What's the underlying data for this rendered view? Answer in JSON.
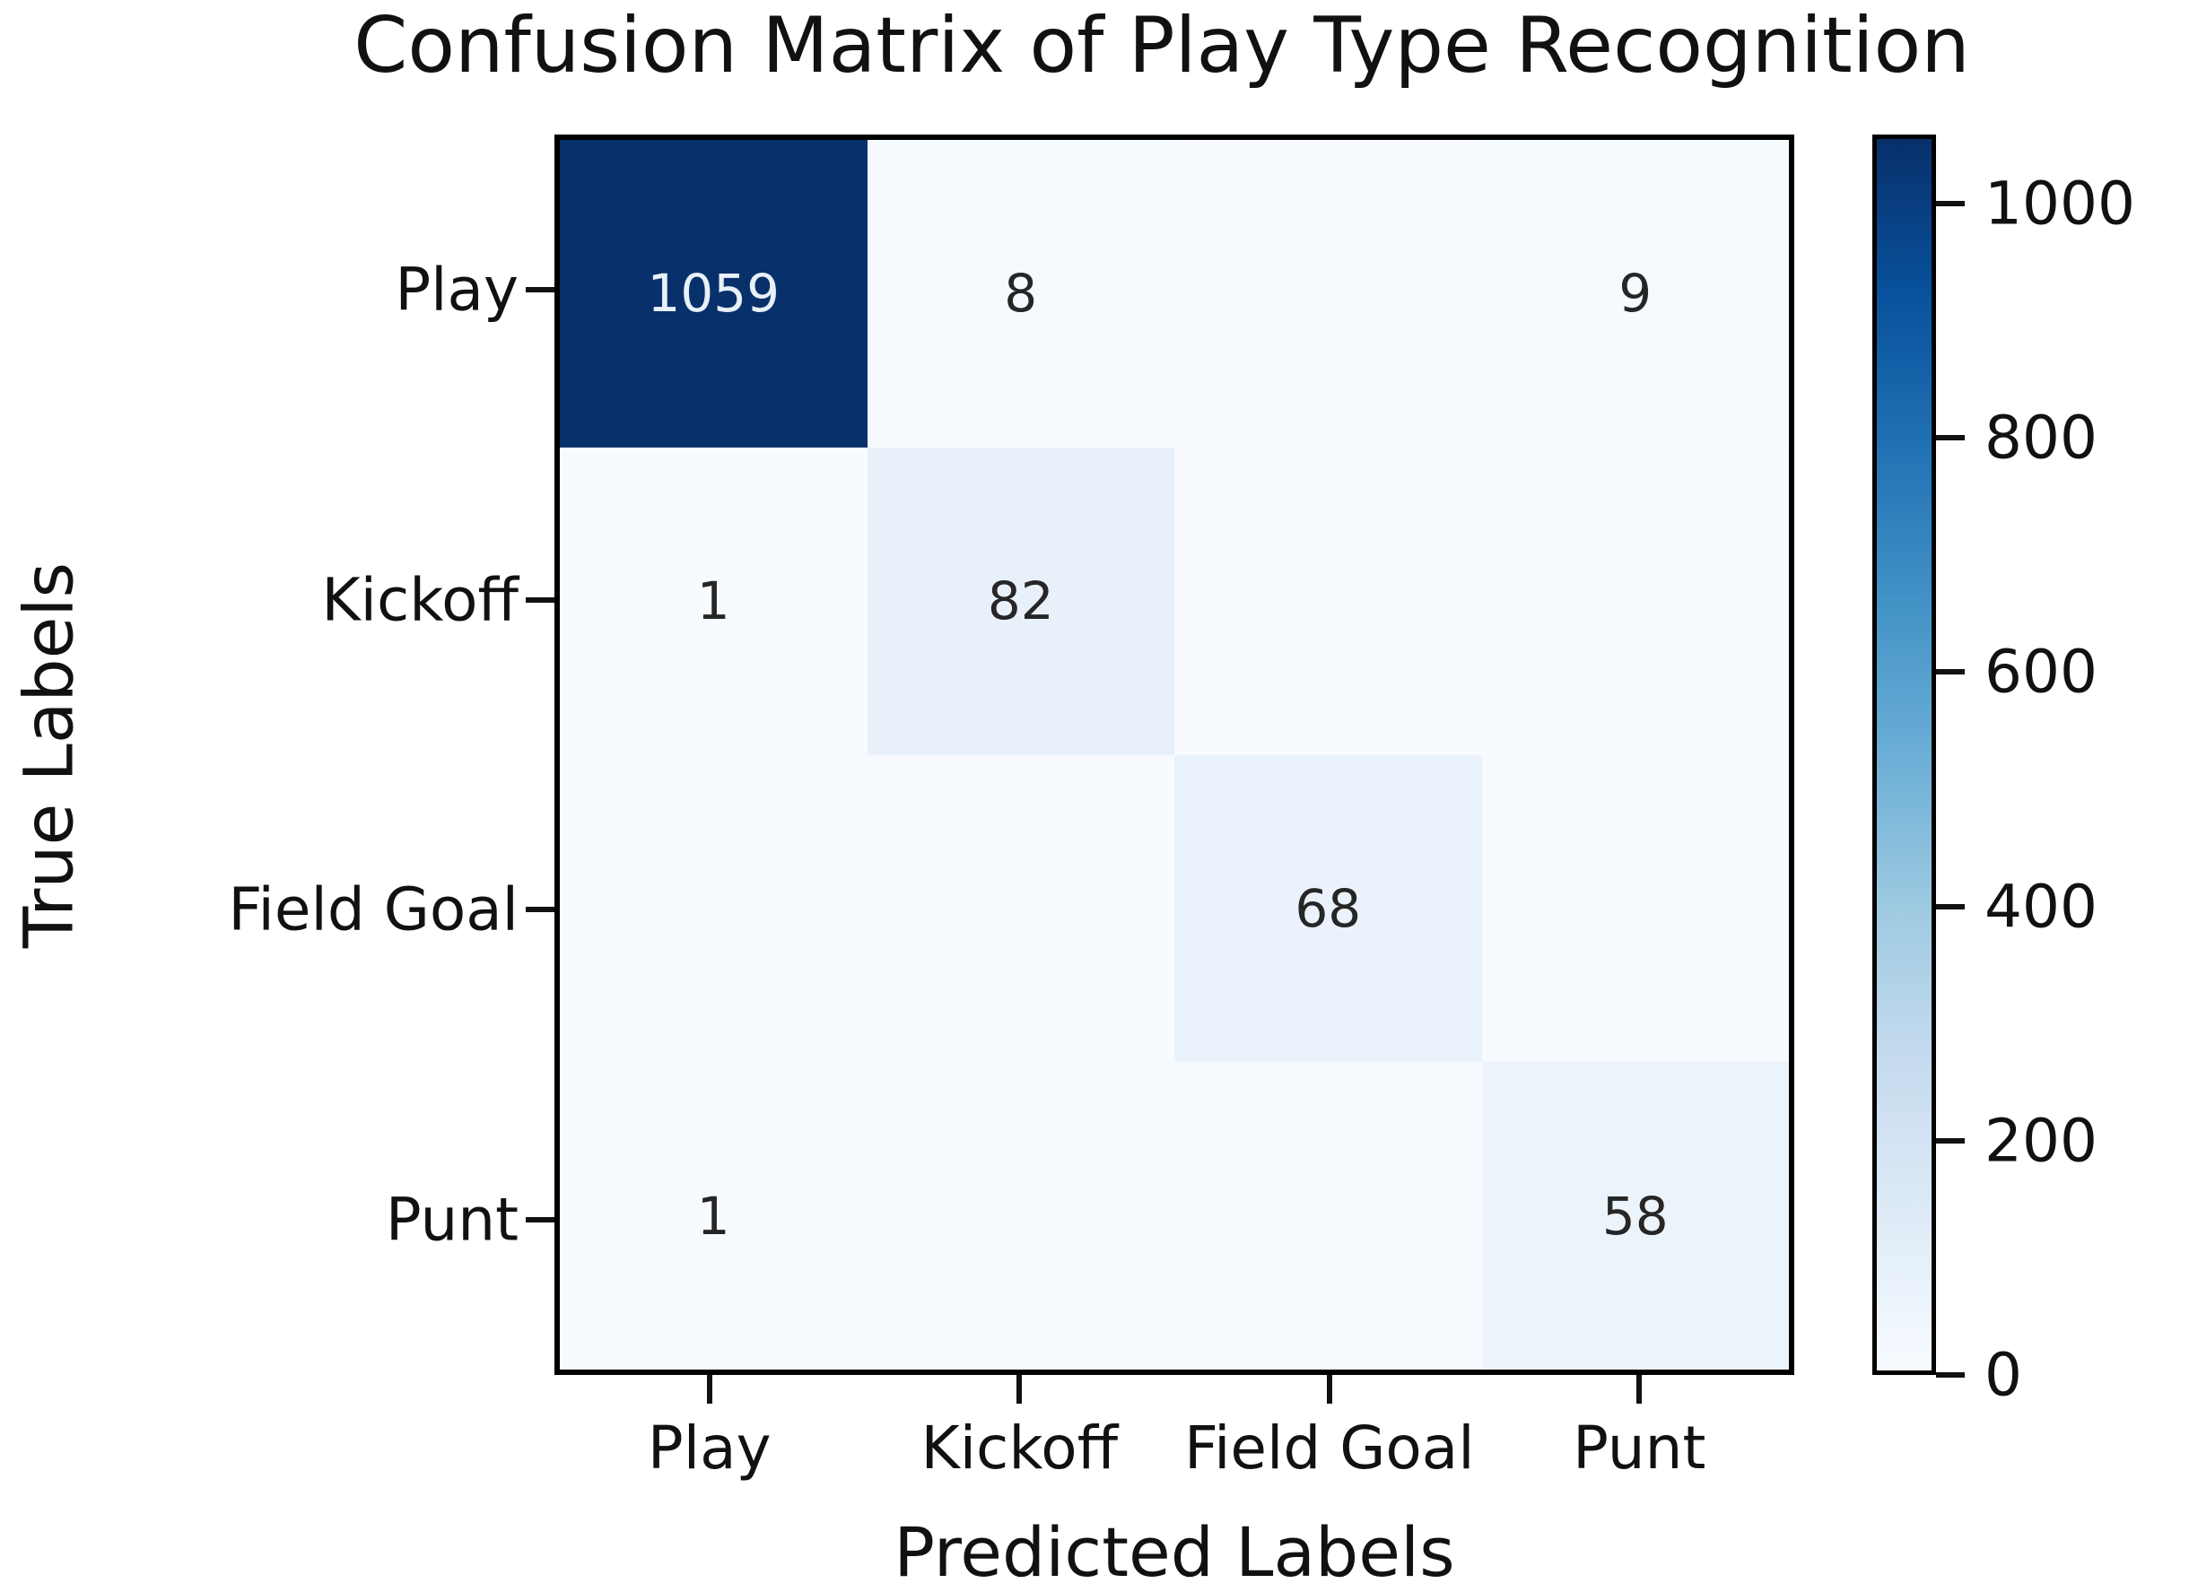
{
  "figure": {
    "title": "Confusion Matrix of Play Type Recognition"
  },
  "chart_data": {
    "type": "heatmap",
    "title": "Confusion Matrix of Play Type Recognition",
    "xlabel": "Predicted Labels",
    "ylabel": "True Labels",
    "x_categories": [
      "Play",
      "Kickoff",
      "Field Goal",
      "Punt"
    ],
    "y_categories": [
      "Play",
      "Kickoff",
      "Field Goal",
      "Punt"
    ],
    "matrix": [
      [
        1059,
        8,
        0,
        9
      ],
      [
        1,
        82,
        0,
        0
      ],
      [
        0,
        0,
        68,
        0
      ],
      [
        1,
        0,
        0,
        58
      ]
    ],
    "visible_annotations": [
      "1059",
      "8",
      "9",
      "1",
      "82",
      "68",
      "1",
      "58"
    ],
    "show_zero_annotations": false,
    "vmin": 0,
    "vmax": 1059,
    "colormap": "Blues",
    "colorbar_ticks": [
      0,
      200,
      400,
      600,
      800,
      1000
    ],
    "colorbar_position": "right",
    "grid": false,
    "legend_position": "none"
  },
  "colors": {
    "colormap_stops": [
      "#f7fbff",
      "#deebf7",
      "#c6dbef",
      "#9ecae1",
      "#6baed6",
      "#4292c6",
      "#2171b5",
      "#08519c",
      "#08306b"
    ],
    "annotation_dark": "#262626",
    "annotation_light": "#e8f0f8",
    "axis_text": "#111111",
    "spine": "#000000",
    "background": "#ffffff"
  }
}
